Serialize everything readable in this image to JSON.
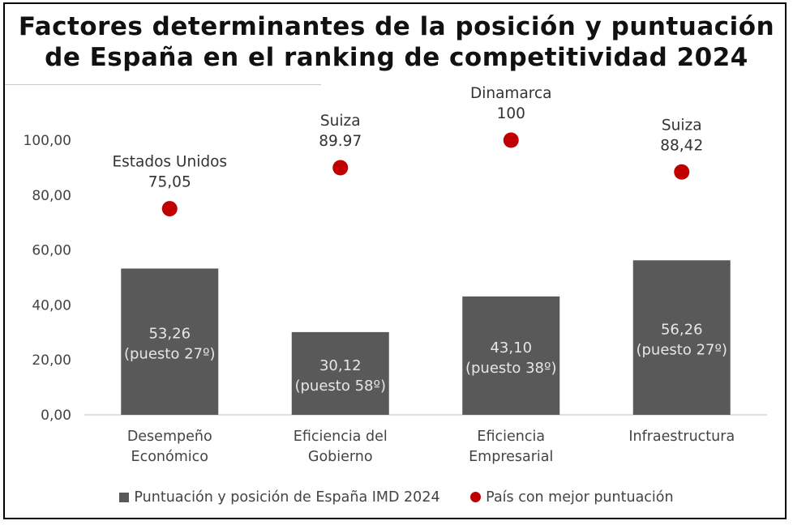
{
  "title": {
    "line1": "Factores determinantes de la posición y puntuación",
    "line2": "de España en el ranking de competitividad 2024"
  },
  "chart_data": {
    "type": "bar",
    "ylim": [
      0,
      100
    ],
    "yticks": [
      "0,00",
      "20,00",
      "40,00",
      "60,00",
      "80,00",
      "100,00"
    ],
    "categories": [
      [
        "Desempeño",
        "Económico"
      ],
      [
        "Eficiencia del",
        "Gobierno"
      ],
      [
        "Eficiencia",
        "Empresarial"
      ],
      [
        "Infraestructura"
      ]
    ],
    "series": [
      {
        "name": "Puntuación y posición de España IMD 2024",
        "type": "bar",
        "color": "#595959",
        "values": [
          53.26,
          30.12,
          43.1,
          56.26
        ],
        "labels": [
          [
            "53,26",
            "(puesto 27º)"
          ],
          [
            "30,12",
            "(puesto 58º)"
          ],
          [
            "43,10",
            "(puesto 38º)"
          ],
          [
            "56,26",
            "(puesto 27º)"
          ]
        ]
      },
      {
        "name": "País con mejor puntuación",
        "type": "scatter",
        "color": "#c00000",
        "values": [
          75.05,
          89.97,
          100,
          88.42
        ],
        "labels": [
          [
            "Estados Unidos",
            "75,05"
          ],
          [
            "Suiza",
            "89.97"
          ],
          [
            "Dinamarca",
            "100"
          ],
          [
            "Suiza",
            "88,42"
          ]
        ]
      }
    ],
    "legend_position": "bottom",
    "grid": false
  }
}
